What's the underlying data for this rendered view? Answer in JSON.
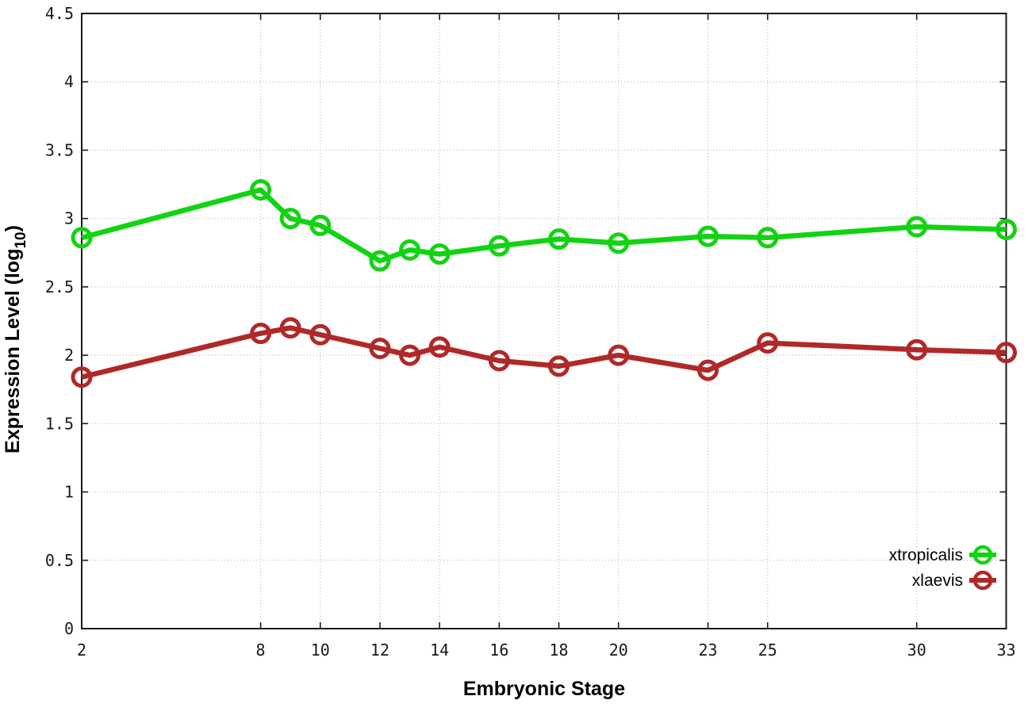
{
  "chart_data": {
    "type": "line",
    "title": "",
    "xlabel": "Embryonic Stage",
    "ylabel": {
      "main": "Expression Level (log",
      "sub": "10",
      "end": ")"
    },
    "x_ticks": [
      2,
      8,
      10,
      12,
      14,
      16,
      18,
      20,
      23,
      25,
      30,
      33
    ],
    "y_ticks": [
      "0",
      "0.5",
      "1",
      "1.5",
      "2",
      "2.5",
      "3",
      "3.5",
      "4",
      "4.5"
    ],
    "xlim": [
      2,
      33
    ],
    "ylim": [
      0,
      4.5
    ],
    "grid": true,
    "legend_position": "inside-bottom-right",
    "x": [
      2,
      8,
      9,
      10,
      12,
      13,
      14,
      16,
      18,
      20,
      23,
      25,
      30,
      33
    ],
    "series": [
      {
        "name": "xtropicalis",
        "color": "#12d312",
        "values": [
          2.86,
          3.21,
          3.0,
          2.95,
          2.69,
          2.77,
          2.74,
          2.8,
          2.85,
          2.82,
          2.87,
          2.86,
          2.94,
          2.92
        ]
      },
      {
        "name": "xlaevis",
        "color": "#b02828",
        "values": [
          1.84,
          2.16,
          2.2,
          2.15,
          2.05,
          2.0,
          2.06,
          1.96,
          1.92,
          2.0,
          1.89,
          2.09,
          2.04,
          2.02
        ]
      }
    ],
    "colors": {
      "grid": "#bcbcbc",
      "axis": "#1a1a1a",
      "text": "#000000",
      "background": "#ffffff"
    }
  }
}
